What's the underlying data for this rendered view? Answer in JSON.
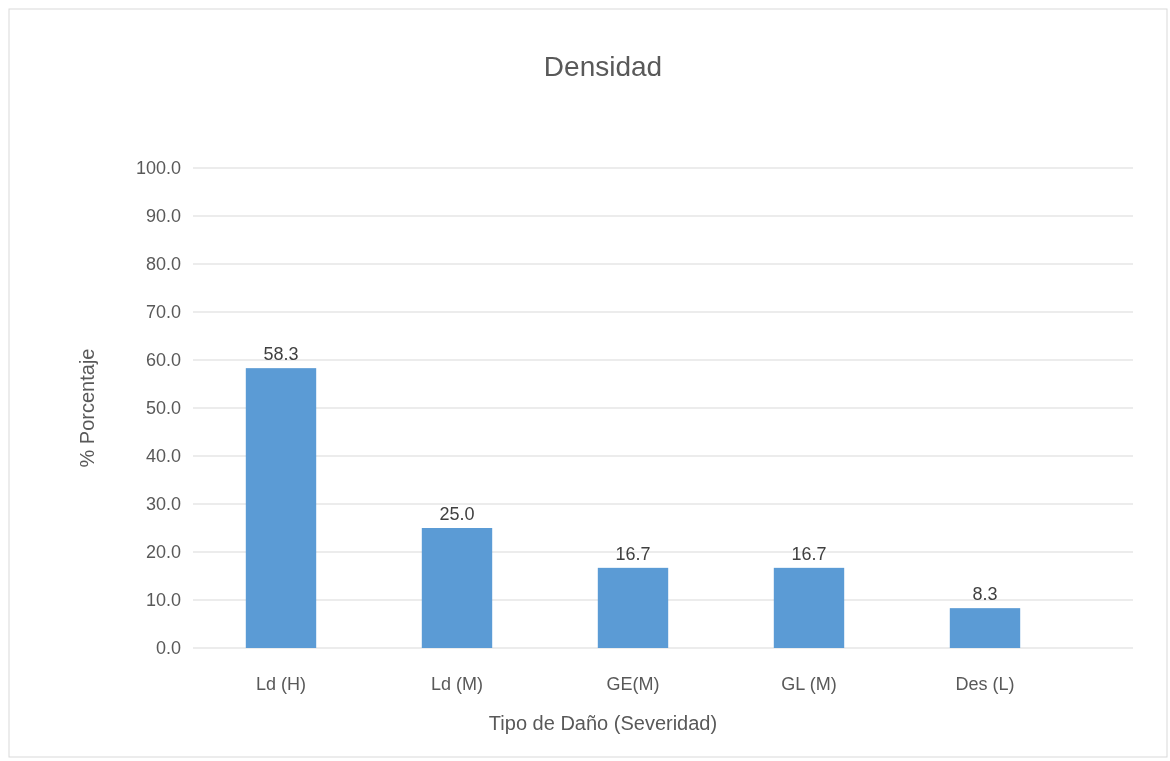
{
  "chart_data": {
    "type": "bar",
    "title": "Densidad",
    "xlabel": "Tipo de Daño (Severidad)",
    "ylabel": "% Porcentaje",
    "categories": [
      "Ld (H)",
      "Ld (M)",
      "GE(M)",
      "GL (M)",
      "Des (L)"
    ],
    "values": [
      58.3,
      25.0,
      16.7,
      16.7,
      8.3
    ],
    "value_labels": [
      "58.3",
      "25.0",
      "16.7",
      "16.7",
      "8.3"
    ],
    "color": "#5b9bd5",
    "ylim": [
      0,
      100
    ],
    "yticks": [
      {
        "value": 0,
        "label": "0.0"
      },
      {
        "value": 10,
        "label": "10.0"
      },
      {
        "value": 20,
        "label": "20.0"
      },
      {
        "value": 30,
        "label": "30.0"
      },
      {
        "value": 40,
        "label": "40.0"
      },
      {
        "value": 50,
        "label": "50.0"
      },
      {
        "value": 60,
        "label": "60.0"
      },
      {
        "value": 70,
        "label": "70.0"
      },
      {
        "value": 80,
        "label": "80.0"
      },
      {
        "value": 90,
        "label": "90.0"
      },
      {
        "value": 100,
        "label": "100.0"
      }
    ],
    "grid": "y"
  }
}
